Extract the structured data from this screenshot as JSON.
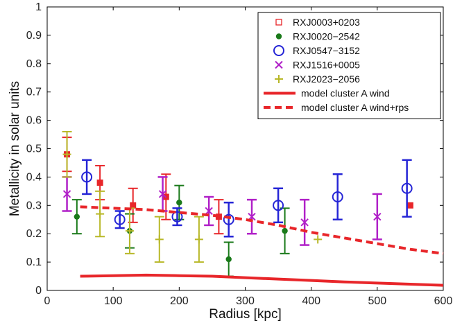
{
  "chart_data": {
    "type": "scatter",
    "xlabel": "Radius [kpc]",
    "ylabel": "Metallicity in solar units",
    "xlim": [
      0,
      600
    ],
    "ylim": [
      0,
      1
    ],
    "x_ticks": [
      0,
      100,
      200,
      300,
      400,
      500,
      600
    ],
    "y_ticks": [
      0,
      0.1,
      0.2,
      0.3,
      0.4,
      0.5,
      0.6,
      0.7,
      0.8,
      0.9,
      1
    ],
    "x_tick_labels": [
      "0",
      "100",
      "200",
      "300",
      "400",
      "500",
      "600"
    ],
    "y_tick_labels": [
      "0",
      "0.1",
      "0.2",
      "0.3",
      "0.4",
      "0.5",
      "0.6",
      "0.7",
      "0.8",
      "0.9",
      "1"
    ],
    "grid": false,
    "legend_position": "top-right",
    "series": [
      {
        "name": "RXJ0003+0203",
        "marker": "square",
        "color": "#e8262a",
        "points": [
          {
            "x": 30,
            "y": 0.48,
            "err": 0.06
          },
          {
            "x": 80,
            "y": 0.38,
            "err": 0.06
          },
          {
            "x": 130,
            "y": 0.3,
            "err": 0.06
          },
          {
            "x": 180,
            "y": 0.33,
            "err": 0.08
          },
          {
            "x": 260,
            "y": 0.26,
            "err": 0.06
          },
          {
            "x": 550,
            "y": 0.3,
            "err": 0
          }
        ]
      },
      {
        "name": "RXJ0020−2542",
        "marker": "dot",
        "color": "#1a7a1a",
        "points": [
          {
            "x": 45,
            "y": 0.26,
            "err": 0.06
          },
          {
            "x": 125,
            "y": 0.21,
            "err": 0.06
          },
          {
            "x": 200,
            "y": 0.31,
            "err": 0.06
          },
          {
            "x": 275,
            "y": 0.11,
            "err": 0.06
          },
          {
            "x": 360,
            "y": 0.21,
            "err": 0.08
          }
        ]
      },
      {
        "name": "RXJ0547−3152",
        "marker": "circle",
        "color": "#2525d6",
        "points": [
          {
            "x": 60,
            "y": 0.4,
            "err": 0.06
          },
          {
            "x": 110,
            "y": 0.25,
            "err": 0.03
          },
          {
            "x": 197,
            "y": 0.26,
            "err": 0.03
          },
          {
            "x": 275,
            "y": 0.25,
            "err": 0.06
          },
          {
            "x": 350,
            "y": 0.3,
            "err": 0.06
          },
          {
            "x": 440,
            "y": 0.33,
            "err": 0.08
          },
          {
            "x": 545,
            "y": 0.36,
            "err": 0.1
          }
        ]
      },
      {
        "name": "RXJ1516+0005",
        "marker": "x",
        "color": "#b020c8",
        "points": [
          {
            "x": 30,
            "y": 0.34,
            "err": 0.06
          },
          {
            "x": 175,
            "y": 0.34,
            "err": 0.06
          },
          {
            "x": 245,
            "y": 0.28,
            "err": 0.05
          },
          {
            "x": 310,
            "y": 0.26,
            "err": 0.06
          },
          {
            "x": 390,
            "y": 0.24,
            "err": 0.08
          },
          {
            "x": 500,
            "y": 0.26,
            "err": 0.08
          }
        ]
      },
      {
        "name": "RXJ2023−2056",
        "marker": "plus",
        "color": "#b8b828",
        "points": [
          {
            "x": 30,
            "y": 0.48,
            "err": 0.08
          },
          {
            "x": 80,
            "y": 0.27,
            "err": 0.08
          },
          {
            "x": 125,
            "y": 0.21,
            "err": 0.08
          },
          {
            "x": 170,
            "y": 0.18,
            "err": 0.08
          },
          {
            "x": 230,
            "y": 0.18,
            "err": 0.08
          },
          {
            "x": 410,
            "y": 0.18,
            "err": 0
          }
        ]
      },
      {
        "name": "model cluster A wind",
        "type": "line",
        "style": "solid",
        "color": "#e8262a",
        "x": [
          50,
          100,
          150,
          200,
          250,
          300,
          350,
          400,
          450,
          500,
          550,
          600
        ],
        "y": [
          0.05,
          0.052,
          0.054,
          0.052,
          0.05,
          0.045,
          0.04,
          0.035,
          0.03,
          0.026,
          0.022,
          0.018
        ]
      },
      {
        "name": "model cluster A wind+rps",
        "type": "line",
        "style": "dashed",
        "color": "#e8262a",
        "x": [
          50,
          100,
          150,
          200,
          250,
          300,
          350,
          400,
          450,
          500,
          550,
          600
        ],
        "y": [
          0.295,
          0.29,
          0.285,
          0.275,
          0.265,
          0.25,
          0.23,
          0.205,
          0.185,
          0.165,
          0.145,
          0.13
        ]
      }
    ]
  }
}
